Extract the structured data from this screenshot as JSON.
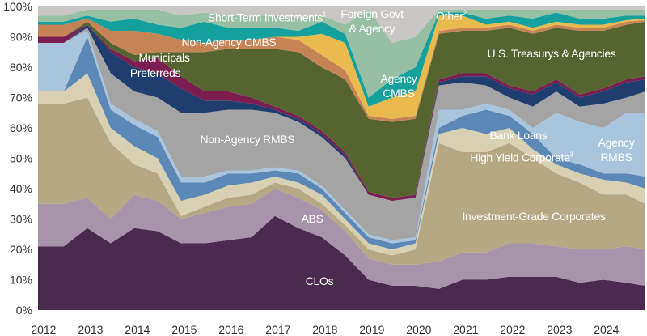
{
  "chart_data": {
    "type": "area",
    "stacked": true,
    "title": "",
    "xlabel": "",
    "ylabel": "",
    "ylim": [
      0,
      100
    ],
    "xlim": [
      2012,
      2024.9
    ],
    "grid": false,
    "y_ticks": [
      "0%",
      "10%",
      "20%",
      "30%",
      "40%",
      "50%",
      "60%",
      "70%",
      "80%",
      "90%",
      "100%"
    ],
    "x_ticks": [
      "2012",
      "2013",
      "2014",
      "2015",
      "2016",
      "2017",
      "2018",
      "2019",
      "2020",
      "2021",
      "2022",
      "2023",
      "2024"
    ],
    "x": [
      2012.0,
      2012.5,
      2013.0,
      2013.5,
      2014.0,
      2014.5,
      2015.0,
      2015.5,
      2016.0,
      2016.5,
      2017.0,
      2017.5,
      2018.0,
      2018.5,
      2019.0,
      2019.5,
      2020.0,
      2020.5,
      2021.0,
      2021.5,
      2022.0,
      2022.5,
      2023.0,
      2023.5,
      2024.0,
      2024.5,
      2024.9
    ],
    "series": [
      {
        "name": "CLOs",
        "color": "#4a2a4f",
        "values": [
          21,
          21,
          27,
          22,
          27,
          26,
          22,
          22,
          23,
          24,
          31,
          27,
          24,
          18,
          10,
          8,
          8,
          7,
          10,
          10,
          11,
          11,
          11,
          9,
          10,
          9,
          8
        ]
      },
      {
        "name": "ABS",
        "color": "#a794ab",
        "values": [
          14,
          14,
          10,
          8,
          11,
          10,
          8,
          10,
          11,
          11,
          9,
          10,
          9,
          8,
          7,
          7,
          7,
          9,
          9,
          9,
          11,
          11,
          10,
          11,
          10,
          12,
          12
        ]
      },
      {
        "name": "Investment-Grade Corporates",
        "color": "#b5a883",
        "values": [
          33,
          33,
          33,
          25,
          10,
          9,
          1,
          2,
          3,
          3,
          2,
          3,
          2,
          2,
          3,
          3,
          5,
          39,
          33,
          33,
          33,
          28,
          24,
          22,
          18,
          17,
          15
        ]
      },
      {
        "name": "High Yield Corporate",
        "sup": "3",
        "color": "#d7d0b3",
        "values": [
          4,
          4,
          8,
          5,
          6,
          5,
          5,
          4,
          4,
          4,
          2,
          2,
          3,
          2,
          2,
          2,
          2,
          3,
          8,
          6,
          5,
          3,
          3,
          3,
          5,
          4,
          5
        ]
      },
      {
        "name": "Bank Loans",
        "color": "#5b88b6",
        "values": [
          0,
          0,
          12,
          6,
          7,
          7,
          6,
          4,
          4,
          3,
          2,
          3,
          2,
          2,
          2,
          2,
          1,
          2,
          4,
          8,
          4,
          5,
          2,
          3,
          2,
          3,
          4
        ]
      },
      {
        "name": "Agency RMBS",
        "color": "#a9c4dd",
        "values": [
          16,
          16,
          2,
          2,
          2,
          2,
          2,
          2,
          1,
          1,
          1,
          1,
          1,
          1,
          1,
          1,
          1,
          6,
          2,
          2,
          2,
          2,
          15,
          14,
          15,
          20,
          21
        ]
      },
      {
        "name": "Non-Agency RMBS",
        "color": "#a4a4a4",
        "values": [
          0,
          0,
          1,
          10,
          9,
          11,
          21,
          21,
          20,
          20,
          18,
          16,
          16,
          17,
          13,
          13,
          13,
          8,
          9,
          6,
          4,
          7,
          7,
          5,
          8,
          5,
          7
        ]
      },
      {
        "name": "Preferreds",
        "color": "#1f3d6e",
        "values": [
          0,
          0,
          1,
          7,
          8,
          8,
          8,
          4,
          3,
          2,
          1,
          1,
          1,
          1,
          0,
          0,
          0,
          1,
          2,
          3,
          3,
          4,
          3,
          3,
          4,
          5,
          4
        ]
      },
      {
        "name": "Municipals",
        "color": "#7c1d52",
        "values": [
          2,
          2,
          0,
          1,
          2,
          5,
          4,
          3,
          3,
          2,
          1,
          1,
          1,
          1,
          1,
          1,
          1,
          1,
          1,
          1,
          1,
          1,
          1,
          1,
          1,
          1,
          1
        ]
      },
      {
        "name": "U.S. Treasurys & Agencies",
        "color": "#566530",
        "values": [
          0,
          0,
          1,
          2,
          2,
          2,
          8,
          13,
          14,
          16,
          19,
          21,
          21,
          24,
          24,
          25,
          25,
          15,
          14,
          14,
          19,
          19,
          17,
          21,
          19,
          18,
          18
        ]
      },
      {
        "name": "Non-Agency CMBS",
        "color": "#c68456",
        "values": [
          4,
          4,
          1,
          4,
          8,
          6,
          4,
          3,
          3,
          3,
          4,
          4,
          4,
          3,
          1,
          1,
          1,
          1,
          1,
          1,
          1,
          1,
          1,
          1,
          1,
          1,
          0.5
        ]
      },
      {
        "name": "Agency CMBS",
        "color": "#e9bb4f",
        "values": [
          0,
          0,
          0,
          0,
          0,
          0,
          0,
          0,
          0,
          0,
          0,
          1,
          7,
          9,
          3,
          7,
          8,
          5,
          4,
          1,
          1,
          1,
          1,
          1,
          1,
          0.5,
          0.5
        ]
      },
      {
        "name": "Other",
        "sup": "2",
        "color": "#14a09c",
        "values": [
          1,
          1,
          1,
          3,
          4,
          3,
          4,
          7,
          4,
          4,
          3,
          2,
          4,
          3,
          3,
          6,
          8,
          1,
          1,
          2,
          2,
          3,
          3,
          2,
          2,
          1.5,
          1
        ]
      },
      {
        "name": "Short-Term Investments",
        "sup": "1",
        "color": "#97bfa4",
        "values": [
          2,
          2,
          2,
          4,
          3,
          5,
          4,
          3,
          4,
          4,
          4,
          4,
          2,
          3,
          29,
          12,
          10,
          1,
          1,
          3,
          2,
          3,
          1,
          3,
          3,
          2,
          2
        ]
      },
      {
        "name": "Foreign Govt & Agency",
        "color": "#c9c7c6",
        "values": [
          3,
          3,
          1,
          1,
          1,
          1,
          3,
          2,
          3,
          3,
          3,
          4,
          3,
          6,
          1,
          12,
          10,
          1,
          1,
          1,
          1,
          1,
          1,
          1,
          1,
          1,
          1
        ]
      }
    ],
    "labels": {
      "short_term": "Short-Term Investments",
      "foreign_1": "Foreign Govt",
      "foreign_2": "& Agency",
      "other": "Other",
      "non_agency_cmbs": "Non-Agency CMBS",
      "municipals": "Municipals",
      "preferreds": "Preferreds",
      "treasurys": "U.S. Treasurys & Agencies",
      "agency_cmbs_1": "Agency",
      "agency_cmbs_2": "CMBS",
      "non_agency_rmbs": "Non-Agency RMBS",
      "bank_loans": "Bank Loans",
      "high_yield": "High Yield Corporate",
      "agency_rmbs_1": "Agency",
      "agency_rmbs_2": "RMBS",
      "abs": "ABS",
      "ig": "Investment-Grade Corporates",
      "clos": "CLOs",
      "sup1": "1",
      "sup2": "2",
      "sup3": "3"
    }
  }
}
